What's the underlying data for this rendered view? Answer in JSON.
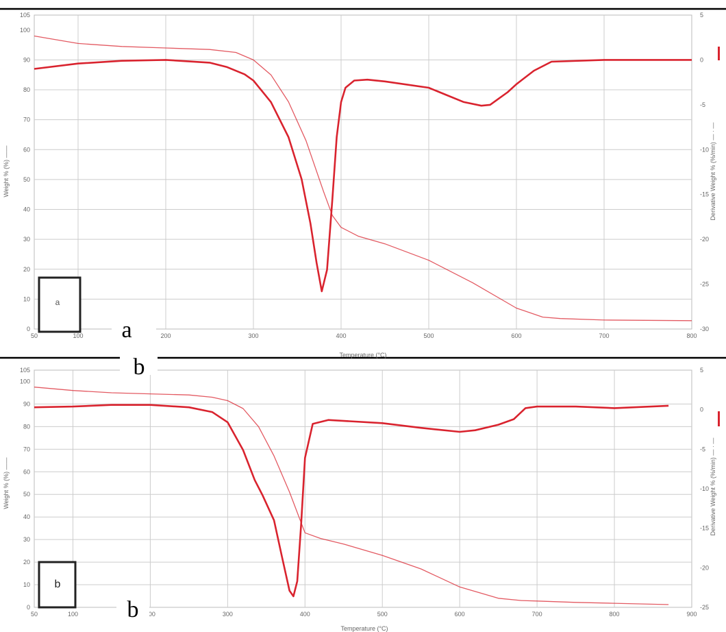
{
  "chart_data": [
    {
      "type": "line",
      "panel_letter": "a",
      "box_label": "a",
      "xlabel": "Temperature (°C)",
      "ylabel_left": "Weight % (%) ——",
      "ylabel_right": "Derivative Weight % (%/min) — · —",
      "xlim": [
        50,
        800
      ],
      "ylim_left": [
        0,
        105
      ],
      "ylim_right": [
        -30,
        5
      ],
      "xticks": [
        50,
        100,
        200,
        300,
        400,
        500,
        600,
        700,
        800
      ],
      "yticks_left": [
        0,
        10,
        20,
        30,
        40,
        50,
        60,
        70,
        80,
        90,
        100,
        105
      ],
      "yticks_right": [
        -30,
        -25,
        -20,
        -15,
        -10,
        -5,
        0,
        5
      ],
      "grid": true,
      "line_color": "#d9232e",
      "series": [
        {
          "axis": "left",
          "x": [
            50,
            70,
            100,
            150,
            200,
            250,
            280,
            300,
            320,
            340,
            360,
            380,
            390,
            400,
            420,
            450,
            500,
            550,
            600,
            630,
            650,
            700,
            800
          ],
          "y": [
            98,
            97,
            95.5,
            94.5,
            94,
            93.5,
            92.5,
            90,
            85,
            76,
            63,
            46,
            38,
            34,
            31,
            28.5,
            23,
            15.5,
            7,
            4,
            3.5,
            3,
            2.8
          ]
        },
        {
          "axis": "right",
          "x": [
            50,
            100,
            150,
            200,
            250,
            270,
            290,
            300,
            320,
            340,
            355,
            365,
            372,
            378,
            384,
            390,
            395,
            400,
            405,
            415,
            430,
            450,
            500,
            520,
            540,
            560,
            570,
            580,
            590,
            600,
            620,
            640,
            700,
            800
          ],
          "y": [
            -1,
            -0.4,
            -0.1,
            0,
            -0.3,
            -0.8,
            -1.6,
            -2.3,
            -4.7,
            -8.6,
            -13.3,
            -18.2,
            -22.6,
            -25.8,
            -23.4,
            -15.6,
            -8.6,
            -4.7,
            -3.1,
            -2.3,
            -2.2,
            -2.4,
            -3.1,
            -3.9,
            -4.7,
            -5.1,
            -5.0,
            -4.3,
            -3.6,
            -2.7,
            -1.2,
            -0.2,
            0,
            0
          ]
        }
      ]
    },
    {
      "type": "line",
      "panel_letter": "b",
      "box_label": "b",
      "xlabel": "Temperature (°C)",
      "ylabel_left": "Weight % (%) ——",
      "ylabel_right": "Derivative Weight % (%/min) — · —",
      "xlim": [
        50,
        900
      ],
      "ylim_left": [
        0,
        105
      ],
      "ylim_right": [
        -25,
        5
      ],
      "xticks": [
        50,
        100,
        200,
        300,
        400,
        500,
        600,
        700,
        800,
        900
      ],
      "yticks_left": [
        0,
        10,
        20,
        30,
        40,
        50,
        60,
        70,
        80,
        90,
        100,
        105
      ],
      "yticks_right": [
        -25,
        -20,
        -15,
        -10,
        -5,
        0,
        5
      ],
      "grid": true,
      "line_color": "#d9232e",
      "series": [
        {
          "axis": "left",
          "x": [
            50,
            100,
            150,
            200,
            250,
            280,
            300,
            320,
            340,
            360,
            380,
            400,
            420,
            450,
            500,
            550,
            600,
            650,
            680,
            700,
            750,
            800,
            870
          ],
          "y": [
            97.5,
            96,
            95,
            94.5,
            94,
            93,
            91.5,
            88,
            80,
            67,
            51,
            33,
            30.5,
            28,
            23,
            17,
            9,
            4,
            3,
            2.8,
            2.2,
            1.8,
            1.2
          ]
        },
        {
          "axis": "right",
          "x": [
            50,
            100,
            150,
            200,
            250,
            280,
            300,
            320,
            335,
            345,
            360,
            370,
            380,
            385,
            390,
            395,
            400,
            410,
            430,
            500,
            550,
            600,
            620,
            650,
            670,
            685,
            700,
            750,
            800,
            870
          ],
          "y": [
            0.3,
            0.4,
            0.6,
            0.6,
            0.3,
            -0.3,
            -1.6,
            -5.1,
            -8.9,
            -10.8,
            -14.0,
            -18.5,
            -22.9,
            -23.6,
            -21.7,
            -14.6,
            -6.1,
            -1.8,
            -1.3,
            -1.7,
            -2.3,
            -2.8,
            -2.6,
            -1.9,
            -1.2,
            0.2,
            0.4,
            0.4,
            0.2,
            0.5
          ]
        }
      ]
    }
  ]
}
